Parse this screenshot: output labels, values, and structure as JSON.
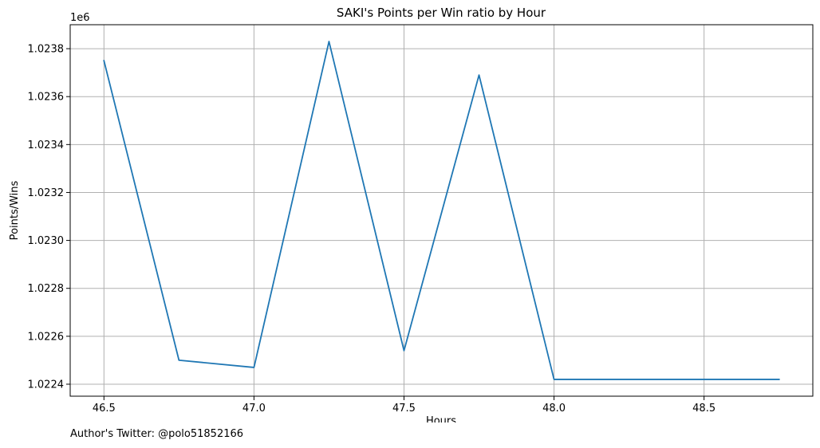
{
  "chart_data": {
    "type": "line",
    "title": "SAKI's Points per Win ratio by Hour",
    "xlabel": "Hours",
    "ylabel": "Points/Wins",
    "offset_label": "1e6",
    "grid": true,
    "xlim": [
      46.3875,
      48.8625
    ],
    "ylim": [
      1.02235,
      1.0239
    ],
    "x_ticks": [
      46.5,
      47.0,
      47.5,
      48.0,
      48.5
    ],
    "x_tick_labels": [
      "46.5",
      "47.0",
      "47.5",
      "48.0",
      "48.5"
    ],
    "y_ticks": [
      1.0224,
      1.0226,
      1.0228,
      1.023,
      1.0232,
      1.0234,
      1.0236,
      1.0238
    ],
    "y_tick_labels": [
      "1.0224",
      "1.0226",
      "1.0228",
      "1.0230",
      "1.0232",
      "1.0234",
      "1.0236",
      "1.0238"
    ],
    "series": [
      {
        "color": "#1f77b4",
        "x": [
          46.5,
          46.75,
          47.0,
          47.25,
          47.5,
          47.75,
          48.0,
          48.25,
          48.5,
          48.75
        ],
        "y": [
          1.02375,
          1.0225,
          1.02247,
          1.02383,
          1.02254,
          1.02369,
          1.02242,
          1.02242,
          1.02242,
          1.02242
        ]
      }
    ]
  },
  "footer": {
    "author": "Author's Twitter: @polo51852166"
  }
}
